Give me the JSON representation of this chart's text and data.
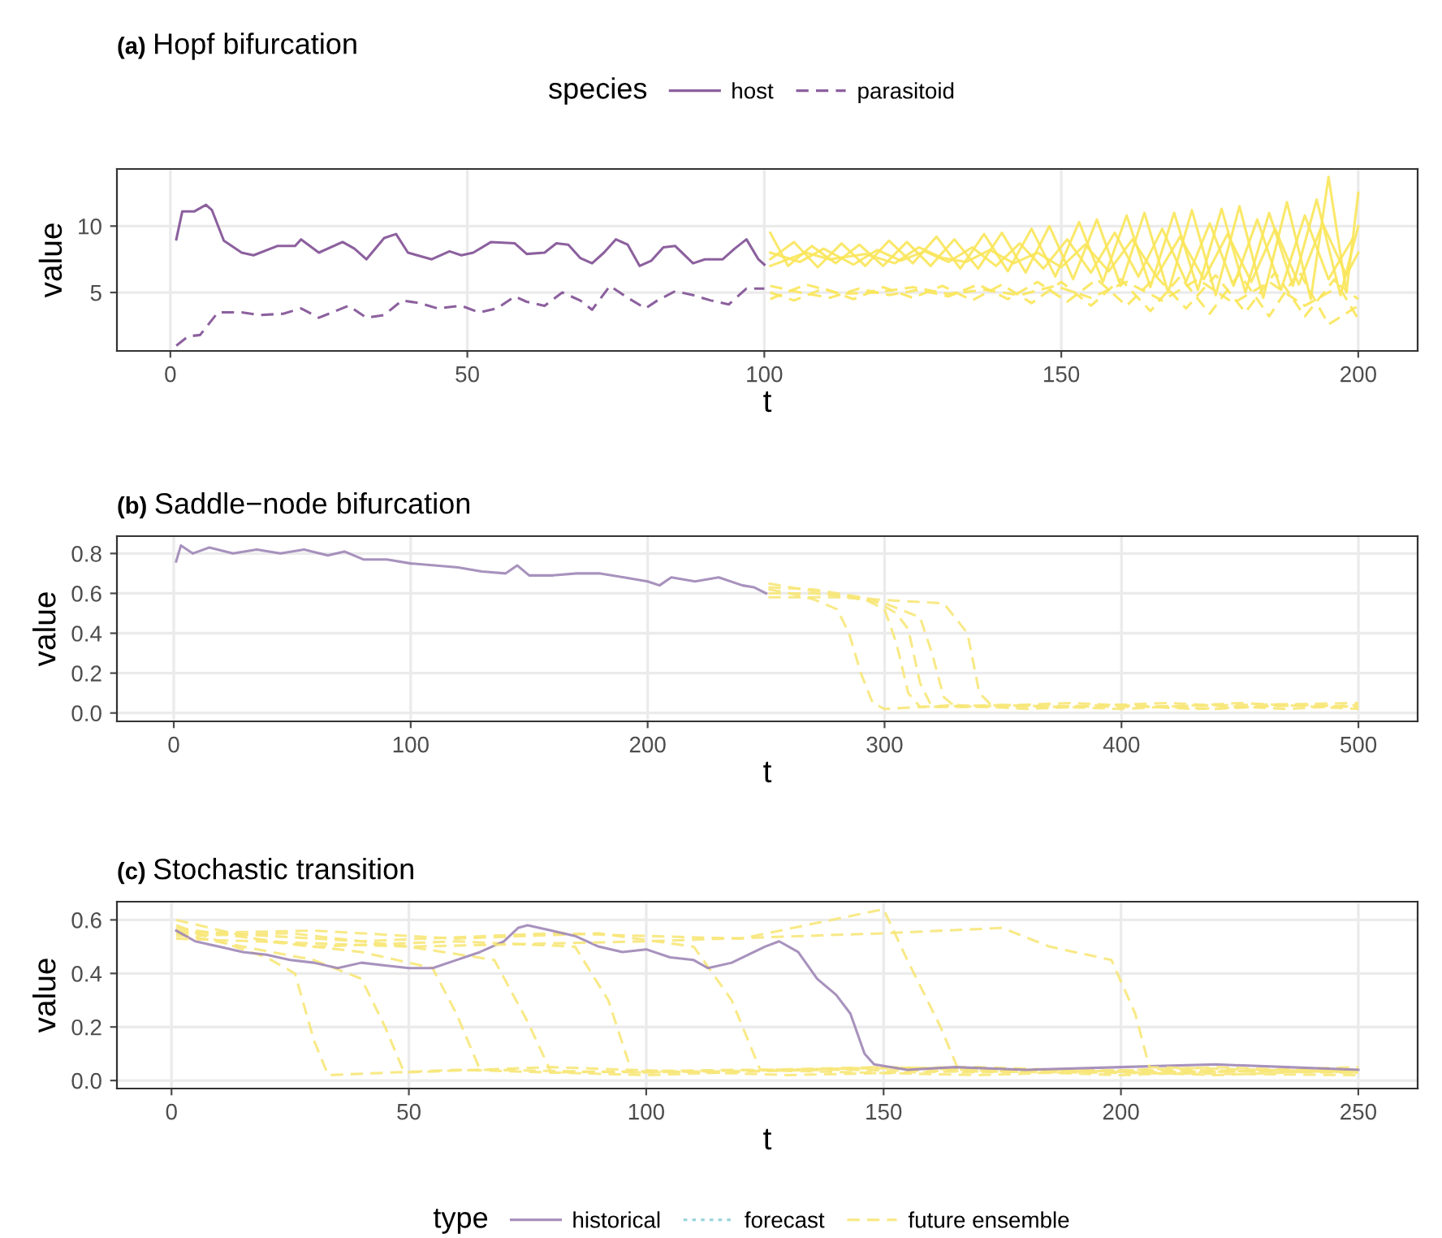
{
  "chart_data": [
    {
      "type": "line",
      "title": "(a) Hopf bifurcation",
      "xlabel": "t",
      "ylabel": "value",
      "xlim": [
        -9,
        210
      ],
      "ylim": [
        0.6,
        14.3
      ],
      "xticks": [
        0,
        50,
        100,
        150,
        200
      ],
      "yticks": [
        5,
        10
      ],
      "grid": true,
      "legend": "top",
      "legend_title": "species",
      "marker": "none",
      "series": [
        {
          "name": "host",
          "color": "#7f4f93",
          "line_style": "solid",
          "x": [
            1,
            2,
            4,
            6,
            7,
            9,
            12,
            14,
            18,
            21,
            22,
            25,
            29,
            31,
            33,
            36,
            38,
            40,
            44,
            47,
            49,
            51,
            54,
            58,
            60,
            63,
            65,
            67,
            69,
            71,
            73,
            75,
            77,
            79,
            81,
            83,
            85,
            88,
            90,
            93,
            95,
            97,
            99,
            100
          ],
          "values": [
            9.0,
            11.1,
            11.1,
            11.6,
            11.2,
            8.9,
            8.0,
            7.8,
            8.5,
            8.5,
            9.0,
            8.0,
            8.8,
            8.3,
            7.5,
            9.1,
            9.4,
            8.0,
            7.5,
            8.1,
            7.8,
            8.0,
            8.8,
            8.7,
            7.9,
            8.0,
            8.7,
            8.6,
            7.6,
            7.2,
            8.0,
            9.0,
            8.6,
            7.0,
            7.4,
            8.4,
            8.5,
            7.2,
            7.5,
            7.5,
            8.3,
            9.0,
            7.5,
            7.1
          ]
        },
        {
          "name": "parasitoid",
          "color": "#7f4f93",
          "line_style": "dashed",
          "x": [
            1,
            3,
            5,
            8,
            12,
            15,
            19,
            22,
            25,
            30,
            33,
            36,
            39,
            42,
            45,
            49,
            52,
            55,
            58,
            60,
            63,
            66,
            69,
            71,
            74,
            77,
            80,
            82,
            85,
            88,
            91,
            94,
            97,
            100
          ],
          "values": [
            1.0,
            1.7,
            1.8,
            3.5,
            3.5,
            3.3,
            3.4,
            3.8,
            3.1,
            4.0,
            3.1,
            3.3,
            4.4,
            4.2,
            3.8,
            4.0,
            3.5,
            3.8,
            4.7,
            4.3,
            4.0,
            5.0,
            4.4,
            3.7,
            5.5,
            4.6,
            3.8,
            4.4,
            5.1,
            4.8,
            4.4,
            4.1,
            5.3,
            5.3
          ]
        },
        {
          "color": "#f9e65a",
          "line_style": "solid",
          "x": [
            101,
            104,
            108,
            112,
            116,
            120,
            124,
            128,
            132,
            136,
            140,
            144,
            148,
            152,
            156,
            160,
            164,
            168,
            172,
            176,
            180,
            184,
            188,
            192,
            195,
            198,
            200
          ],
          "values": [
            9.5,
            7.0,
            8.5,
            7.2,
            8.6,
            7.0,
            8.8,
            7.0,
            9.0,
            6.8,
            9.5,
            6.5,
            10.0,
            6.0,
            10.5,
            5.5,
            11.0,
            5.0,
            11.2,
            4.8,
            11.5,
            4.6,
            11.8,
            4.5,
            13.7,
            5.0,
            12.5
          ]
        },
        {
          "color": "#f9e65a",
          "line_style": "solid",
          "x": [
            101,
            105,
            109,
            113,
            117,
            121,
            125,
            129,
            133,
            137,
            141,
            145,
            149,
            153,
            157,
            161,
            165,
            169,
            173,
            177,
            181,
            185,
            189,
            193,
            197,
            200
          ],
          "values": [
            7.5,
            8.8,
            6.9,
            8.7,
            7.0,
            8.9,
            7.2,
            9.2,
            6.8,
            9.4,
            6.6,
            9.8,
            6.2,
            10.3,
            5.8,
            10.8,
            5.4,
            11.0,
            5.2,
            11.3,
            5.0,
            11.0,
            5.5,
            12.0,
            4.8,
            10.0
          ]
        },
        {
          "color": "#f9e65a",
          "line_style": "solid",
          "x": [
            101,
            106,
            110,
            115,
            119,
            123,
            127,
            131,
            135,
            139,
            143,
            147,
            151,
            155,
            159,
            163,
            167,
            171,
            175,
            179,
            183,
            187,
            191,
            195,
            199
          ],
          "values": [
            8.0,
            7.3,
            8.3,
            7.1,
            8.2,
            7.4,
            8.1,
            7.3,
            8.4,
            7.0,
            8.7,
            6.8,
            9.0,
            6.5,
            9.5,
            6.2,
            9.8,
            5.8,
            10.2,
            5.5,
            10.5,
            5.2,
            10.8,
            6.0,
            9.0
          ]
        },
        {
          "color": "#f9e65a",
          "line_style": "solid",
          "x": [
            101,
            107,
            111,
            117,
            122,
            126,
            130,
            134,
            138,
            142,
            146,
            150,
            154,
            158,
            162,
            166,
            170,
            174,
            178,
            182,
            186,
            190,
            194,
            198,
            200
          ],
          "values": [
            7.0,
            8.0,
            7.5,
            7.9,
            7.2,
            8.4,
            7.6,
            7.3,
            8.2,
            7.2,
            8.0,
            6.9,
            8.6,
            6.6,
            9.0,
            6.2,
            9.2,
            6.0,
            9.4,
            5.8,
            9.8,
            5.6,
            10.2,
            6.3,
            8.0
          ]
        },
        {
          "color": "#f9e65a",
          "line_style": "dashed",
          "x": [
            101,
            105,
            110,
            115,
            120,
            125,
            130,
            135,
            140,
            145,
            150,
            155,
            160,
            165,
            170,
            175,
            180,
            185,
            190,
            195,
            200
          ],
          "values": [
            5.0,
            4.4,
            5.3,
            4.5,
            5.4,
            4.6,
            5.5,
            4.4,
            5.6,
            4.2,
            5.8,
            4.0,
            6.0,
            3.6,
            6.2,
            3.4,
            6.4,
            3.2,
            6.6,
            2.6,
            4.0
          ]
        },
        {
          "color": "#f9e65a",
          "line_style": "dashed",
          "x": [
            101,
            106,
            111,
            116,
            121,
            126,
            131,
            136,
            141,
            146,
            151,
            156,
            161,
            166,
            171,
            176,
            181,
            186,
            191,
            196,
            200
          ],
          "values": [
            5.5,
            5.0,
            4.6,
            5.3,
            4.8,
            5.2,
            4.7,
            5.6,
            4.5,
            5.8,
            4.3,
            6.0,
            4.0,
            6.2,
            3.8,
            6.3,
            3.5,
            6.5,
            3.2,
            6.0,
            3.0
          ]
        },
        {
          "color": "#f9e65a",
          "line_style": "dashed",
          "x": [
            101,
            107,
            113,
            119,
            125,
            131,
            137,
            143,
            149,
            155,
            161,
            167,
            173,
            179,
            185,
            191,
            197,
            200
          ],
          "values": [
            4.5,
            5.6,
            4.9,
            5.0,
            5.4,
            4.9,
            5.2,
            4.8,
            5.5,
            4.6,
            5.8,
            4.4,
            6.0,
            4.2,
            5.8,
            4.0,
            5.5,
            4.5
          ]
        }
      ]
    },
    {
      "type": "line",
      "title": "(b) Saddle−node bifurcation",
      "xlabel": "t",
      "ylabel": "value",
      "xlim": [
        -24,
        525
      ],
      "ylim": [
        -0.042,
        0.887
      ],
      "xticks": [
        0,
        100,
        200,
        300,
        400,
        500
      ],
      "yticks": [
        {
          "value": 0,
          "label": "0.0"
        },
        0.2,
        0.4,
        0.6,
        0.8
      ],
      "grid": true,
      "marker": "none",
      "series": [
        {
          "color": "#9f86b6",
          "line_style": "solid",
          "x": [
            1,
            3,
            8,
            15,
            25,
            35,
            45,
            55,
            65,
            72,
            80,
            90,
            100,
            110,
            120,
            130,
            140,
            145,
            150,
            160,
            170,
            180,
            190,
            200,
            205,
            210,
            220,
            230,
            240,
            245,
            250
          ],
          "values": [
            0.76,
            0.84,
            0.8,
            0.83,
            0.8,
            0.82,
            0.8,
            0.82,
            0.79,
            0.81,
            0.77,
            0.77,
            0.75,
            0.74,
            0.73,
            0.71,
            0.7,
            0.74,
            0.69,
            0.69,
            0.7,
            0.7,
            0.68,
            0.66,
            0.64,
            0.68,
            0.66,
            0.68,
            0.64,
            0.63,
            0.6
          ]
        },
        {
          "color": "#f7e77a",
          "line_style": "dashed",
          "x": [
            251,
            260,
            270,
            280,
            285,
            290,
            295,
            300,
            330,
            360,
            400,
            440,
            470,
            500
          ],
          "values": [
            0.62,
            0.6,
            0.57,
            0.52,
            0.4,
            0.2,
            0.05,
            0.02,
            0.04,
            0.02,
            0.04,
            0.02,
            0.04,
            0.03
          ]
        },
        {
          "color": "#f7e77a",
          "line_style": "dashed",
          "x": [
            251,
            270,
            290,
            300,
            305,
            310,
            315,
            350,
            400,
            450,
            500
          ],
          "values": [
            0.6,
            0.6,
            0.58,
            0.52,
            0.35,
            0.1,
            0.03,
            0.04,
            0.02,
            0.05,
            0.02
          ]
        },
        {
          "color": "#f7e77a",
          "line_style": "dashed",
          "x": [
            251,
            275,
            300,
            315,
            320,
            325,
            330,
            380,
            430,
            480,
            500
          ],
          "values": [
            0.65,
            0.6,
            0.55,
            0.48,
            0.3,
            0.08,
            0.03,
            0.05,
            0.02,
            0.04,
            0.03
          ]
        },
        {
          "color": "#f7e77a",
          "line_style": "dashed",
          "x": [
            251,
            280,
            310,
            325,
            335,
            340,
            345,
            400,
            450,
            500
          ],
          "values": [
            0.58,
            0.58,
            0.56,
            0.55,
            0.4,
            0.1,
            0.04,
            0.03,
            0.04,
            0.05
          ]
        },
        {
          "color": "#f7e77a",
          "line_style": "dashed",
          "x": [
            251,
            270,
            295,
            305,
            310,
            315,
            320,
            370,
            420,
            470,
            500
          ],
          "values": [
            0.63,
            0.62,
            0.57,
            0.5,
            0.42,
            0.15,
            0.03,
            0.03,
            0.05,
            0.02,
            0.04
          ]
        }
      ]
    },
    {
      "type": "line",
      "title": "(c) Stochastic transition",
      "xlabel": "t",
      "ylabel": "value",
      "xlim": [
        -11.5,
        262.5
      ],
      "ylim": [
        -0.03,
        0.668
      ],
      "xticks": [
        0,
        50,
        100,
        150,
        200,
        250
      ],
      "yticks": [
        {
          "value": 0,
          "label": "0.0"
        },
        0.2,
        0.4,
        0.6
      ],
      "grid": true,
      "legend": "bottom",
      "legend_title": "type",
      "marker": "none",
      "series": [
        {
          "color": "#f7e77a",
          "line_style": "dashed",
          "x": [
            1,
            10,
            20,
            26,
            30,
            33,
            60,
            100,
            150,
            200,
            250
          ],
          "values": [
            0.58,
            0.52,
            0.46,
            0.4,
            0.15,
            0.02,
            0.04,
            0.02,
            0.05,
            0.03,
            0.04
          ]
        },
        {
          "color": "#f7e77a",
          "line_style": "dashed",
          "x": [
            1,
            15,
            30,
            40,
            45,
            49,
            80,
            130,
            180,
            250
          ],
          "values": [
            0.55,
            0.5,
            0.45,
            0.38,
            0.2,
            0.03,
            0.05,
            0.02,
            0.04,
            0.03
          ]
        },
        {
          "color": "#f7e77a",
          "line_style": "dashed",
          "x": [
            1,
            20,
            40,
            55,
            60,
            65,
            100,
            150,
            200,
            250
          ],
          "values": [
            0.6,
            0.52,
            0.48,
            0.42,
            0.25,
            0.04,
            0.03,
            0.05,
            0.02,
            0.05
          ]
        },
        {
          "color": "#f7e77a",
          "line_style": "dashed",
          "x": [
            1,
            25,
            50,
            68,
            75,
            80,
            120,
            170,
            220,
            250
          ],
          "values": [
            0.54,
            0.55,
            0.5,
            0.45,
            0.22,
            0.03,
            0.04,
            0.02,
            0.05,
            0.03
          ]
        },
        {
          "color": "#f7e77a",
          "line_style": "dashed",
          "x": [
            1,
            30,
            60,
            85,
            92,
            97,
            140,
            190,
            250
          ],
          "values": [
            0.57,
            0.5,
            0.52,
            0.5,
            0.3,
            0.03,
            0.04,
            0.03,
            0.02
          ]
        },
        {
          "color": "#f7e77a",
          "line_style": "dashed",
          "x": [
            1,
            30,
            60,
            90,
            110,
            118,
            124,
            170,
            220,
            250
          ],
          "values": [
            0.55,
            0.56,
            0.53,
            0.55,
            0.5,
            0.3,
            0.04,
            0.05,
            0.02,
            0.04
          ]
        },
        {
          "color": "#f7e77a",
          "line_style": "dashed",
          "x": [
            1,
            40,
            80,
            120,
            150,
            155,
            162,
            166,
            210,
            250
          ],
          "values": [
            0.56,
            0.52,
            0.55,
            0.53,
            0.64,
            0.45,
            0.2,
            0.03,
            0.04,
            0.03
          ]
        },
        {
          "name": "historical",
          "color": "#9f86b6",
          "line_style": "solid",
          "x": [
            1,
            5,
            10,
            15,
            20,
            25,
            30,
            35,
            40,
            45,
            50,
            55,
            60,
            65,
            70,
            73,
            75,
            80,
            85,
            90,
            95,
            100,
            105,
            110,
            113,
            118,
            125,
            128,
            132,
            136,
            140,
            143,
            146,
            148,
            155,
            165,
            180,
            200,
            220,
            235,
            250
          ],
          "values": [
            0.56,
            0.52,
            0.5,
            0.48,
            0.47,
            0.45,
            0.44,
            0.42,
            0.44,
            0.43,
            0.42,
            0.42,
            0.45,
            0.48,
            0.52,
            0.57,
            0.58,
            0.56,
            0.54,
            0.5,
            0.48,
            0.49,
            0.46,
            0.45,
            0.42,
            0.44,
            0.5,
            0.52,
            0.48,
            0.38,
            0.32,
            0.25,
            0.1,
            0.06,
            0.04,
            0.05,
            0.04,
            0.05,
            0.06,
            0.05,
            0.04
          ]
        },
        {
          "name": "forecast",
          "color": "#8fd1d6",
          "line_style": "dotted"
        },
        {
          "name": "future ensemble",
          "color": "#f7e77a",
          "line_style": "dashed",
          "x": [
            1,
            50,
            100,
            150,
            175,
            185,
            198,
            203,
            206,
            230,
            250
          ],
          "values": [
            0.53,
            0.5,
            0.52,
            0.55,
            0.57,
            0.5,
            0.45,
            0.25,
            0.05,
            0.04,
            0.03
          ]
        }
      ]
    }
  ]
}
